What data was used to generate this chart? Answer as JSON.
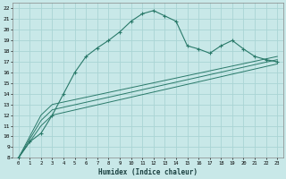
{
  "title": "",
  "xlabel": "Humidex (Indice chaleur)",
  "bg_color": "#c8e8e8",
  "grid_color": "#aad4d4",
  "line_color": "#2a7a6a",
  "xlim": [
    -0.5,
    23.5
  ],
  "ylim": [
    8,
    22.5
  ],
  "xticks": [
    0,
    1,
    2,
    3,
    4,
    5,
    6,
    7,
    8,
    9,
    10,
    11,
    12,
    13,
    14,
    15,
    16,
    17,
    18,
    19,
    20,
    21,
    22,
    23
  ],
  "yticks": [
    8,
    9,
    10,
    11,
    12,
    13,
    14,
    15,
    16,
    17,
    18,
    19,
    20,
    21,
    22
  ],
  "series": [
    {
      "x": [
        0,
        1,
        2,
        3,
        4,
        5,
        6,
        7,
        8,
        9,
        10,
        11,
        12,
        13,
        14,
        15,
        16,
        17,
        18,
        19,
        20,
        21,
        22,
        23
      ],
      "y": [
        8,
        9.5,
        10.3,
        12.0,
        14.0,
        16.0,
        17.5,
        18.3,
        19.0,
        19.8,
        20.8,
        21.5,
        21.8,
        21.3,
        20.8,
        18.5,
        18.2,
        17.8,
        18.5,
        19.0,
        18.2,
        17.5,
        17.2,
        17.0
      ],
      "marker": true
    },
    {
      "x": [
        0,
        2,
        3,
        23
      ],
      "y": [
        8,
        12.0,
        13.0,
        17.5
      ],
      "marker": false
    },
    {
      "x": [
        0,
        2,
        3,
        23
      ],
      "y": [
        8,
        11.5,
        12.5,
        17.2
      ],
      "marker": false
    },
    {
      "x": [
        0,
        2,
        3,
        23
      ],
      "y": [
        8,
        11.0,
        12.0,
        16.8
      ],
      "marker": false
    }
  ]
}
